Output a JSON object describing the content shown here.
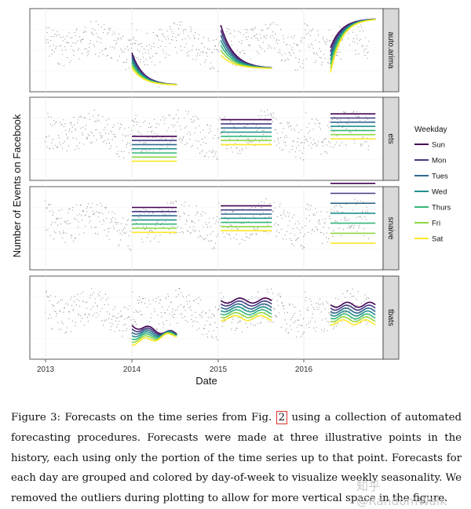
{
  "chart_data": {
    "type": "scatter",
    "xlabel": "Date",
    "ylabel": "Number of Events on Facebook",
    "x_ticks": [
      "2013",
      "2014",
      "2015",
      "2016"
    ],
    "panels": [
      "auto.arima",
      "ets",
      "snaive",
      "tbats"
    ],
    "legend_title": "Weekday",
    "legend_position": "right",
    "series": [
      {
        "name": "Sun",
        "color": "#440154"
      },
      {
        "name": "Mon",
        "color": "#443a83"
      },
      {
        "name": "Tues",
        "color": "#31688e"
      },
      {
        "name": "Wed",
        "color": "#21908d"
      },
      {
        "name": "Thurs",
        "color": "#35b779"
      },
      {
        "name": "Fri",
        "color": "#8fd744"
      },
      {
        "name": "Sat",
        "color": "#fde725"
      }
    ],
    "forecast_origins": [
      "2014-01",
      "2015-01",
      "2016-04"
    ],
    "grid": true
  },
  "caption": {
    "label": "Figure 3:",
    "part1": "Forecasts on the time series from Fig.",
    "ref": "2",
    "part2": "using a collection of automated forecasting procedures. Forecasts were made at three illustrative points in the history, each using only the portion of the time series up to that point. Forecasts for each day are grouped and colored by day-of-week to visualize weekly seasonality. We removed the outliers during plotting to allow for more vertical space in the figure."
  },
  "watermark": "知乎 @RandomWalk"
}
